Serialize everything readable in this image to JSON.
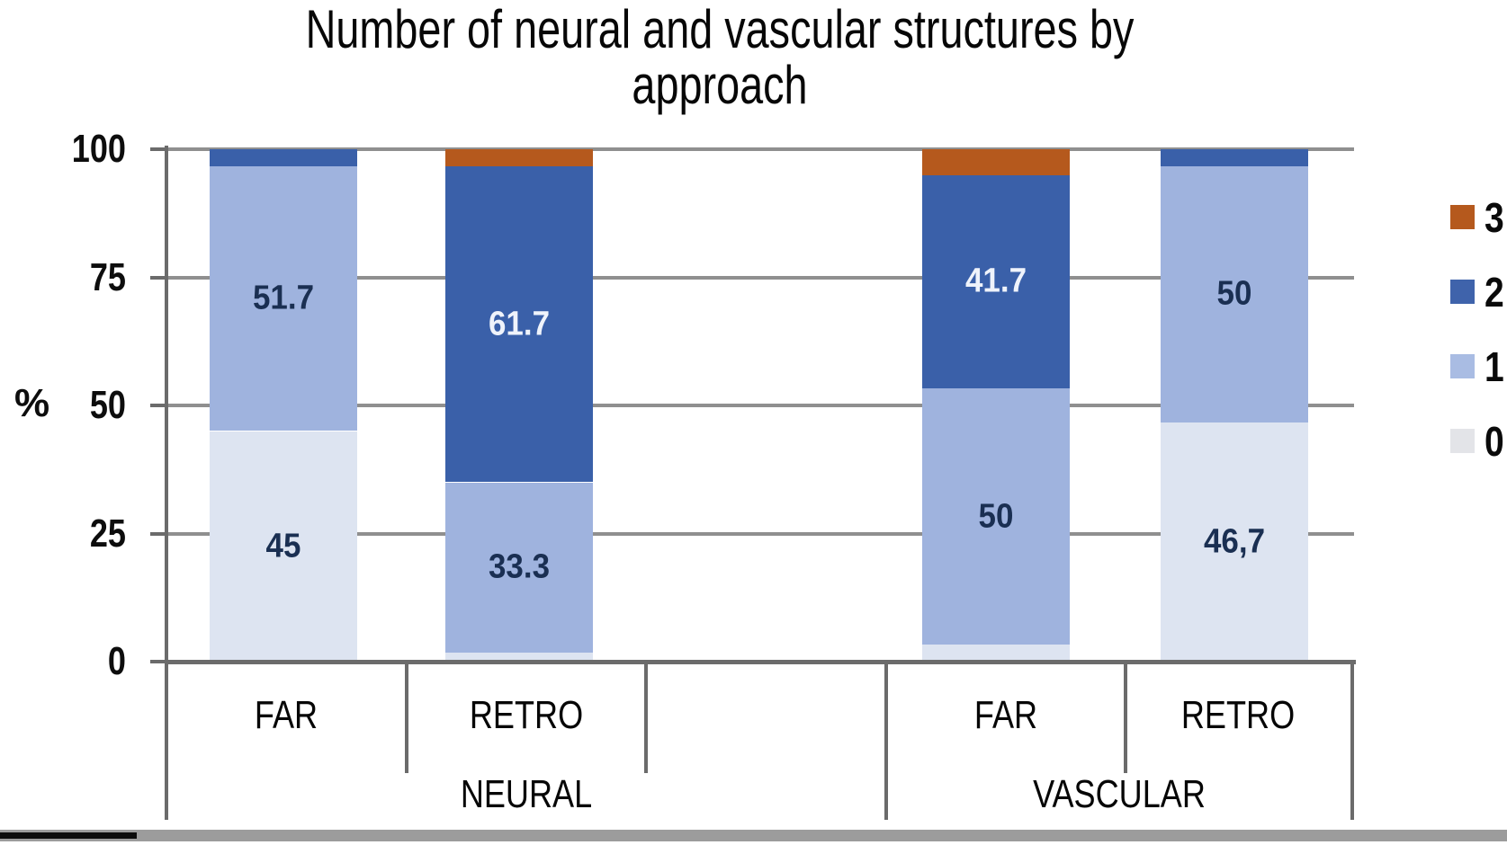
{
  "title": {
    "line1": "Number of neural and vascular structures by",
    "line2": "approach"
  },
  "y_axis": {
    "unit_label": "%",
    "ticks": [
      "100",
      "75",
      "50",
      "25",
      "0"
    ],
    "tick_values": [
      100,
      75,
      50,
      25,
      0
    ]
  },
  "legend": {
    "items": [
      {
        "label": "3",
        "color": "#b5591d"
      },
      {
        "label": "2",
        "color": "#3f63ab"
      },
      {
        "label": "1",
        "color": "#a9bce3"
      },
      {
        "label": "0",
        "color": "#e3e4e8"
      }
    ]
  },
  "chart_data": {
    "type": "bar",
    "stacked": true,
    "title": "Number of neural and vascular structures by approach",
    "xlabel": "",
    "ylabel": "%",
    "ylim": [
      0,
      100
    ],
    "yticks": [
      0,
      25,
      50,
      75,
      100
    ],
    "grid": true,
    "legend_position": "right",
    "series_names": [
      "0",
      "1",
      "2",
      "3"
    ],
    "series_colors": {
      "0": "#dde4f1",
      "1": "#9fb3de",
      "2": "#3a60a9",
      "3": "#b5591d"
    },
    "label_colors": {
      "0": "#1a2f52",
      "1": "#1a2f52",
      "2": "#eff3fb",
      "3": "#1a2f52"
    },
    "groups": [
      {
        "label": "NEURAL",
        "bars": [
          {
            "category": "FAR",
            "values": {
              "0": 45,
              "1": 51.7,
              "2": 3.3,
              "3": 0
            },
            "segment_labels": {
              "0": "45",
              "1": "51.7"
            }
          },
          {
            "category": "RETRO",
            "values": {
              "0": 1.7,
              "1": 33.3,
              "2": 61.7,
              "3": 3.3
            },
            "segment_labels": {
              "1": "33.3",
              "2": "61.7"
            }
          }
        ]
      },
      {
        "label": "VASCULAR",
        "bars": [
          {
            "category": "FAR",
            "values": {
              "0": 3.3,
              "1": 50,
              "2": 41.7,
              "3": 5
            },
            "segment_labels": {
              "1": "50",
              "2": "41.7"
            }
          },
          {
            "category": "RETRO",
            "values": {
              "0": 46.7,
              "1": 50,
              "2": 3.3,
              "3": 0
            },
            "segment_labels": {
              "0": "46,7",
              "1": "50"
            }
          }
        ]
      }
    ]
  }
}
